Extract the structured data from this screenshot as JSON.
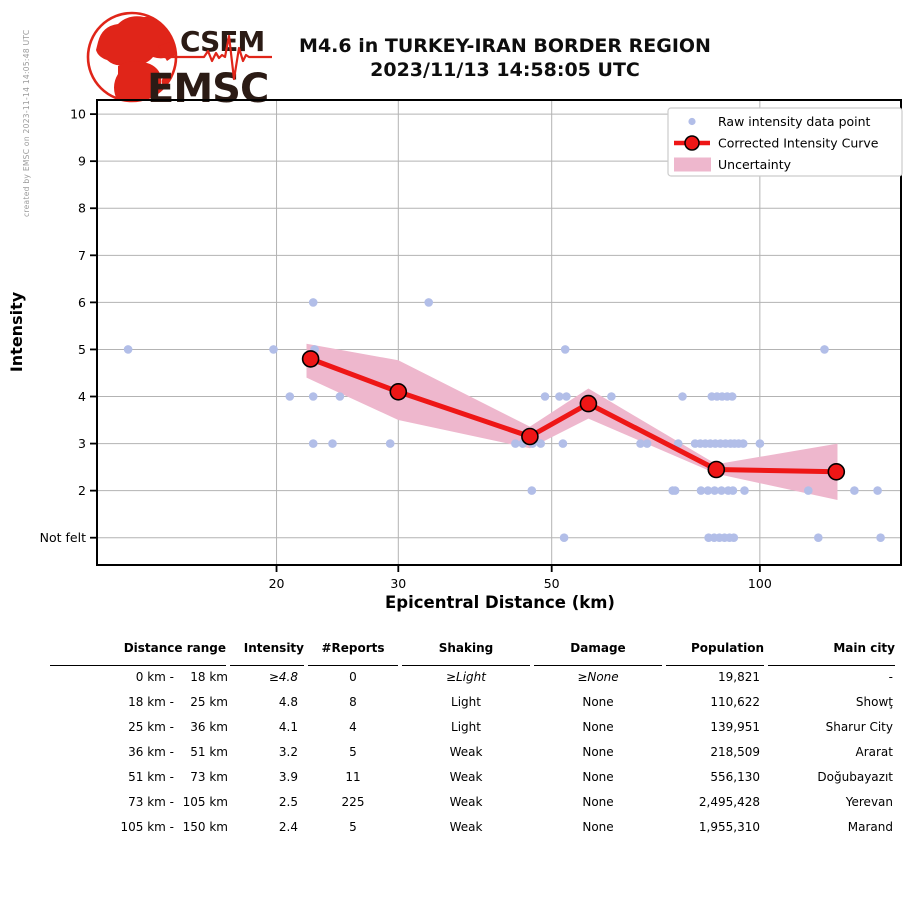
{
  "credit": "created by EMSC on 2023-11-14 14:05:48 UTC",
  "logo": {
    "top": "CSEM",
    "bottom": "EMSC",
    "text_color": "#2b1b15",
    "accent_color": "#e02519"
  },
  "title": {
    "line1": "M4.6 in TURKEY-IRAN BORDER REGION",
    "line2": "2023/11/13 14:58:05 UTC"
  },
  "chart_data": {
    "type": "line",
    "title": "M4.6 in TURKEY-IRAN BORDER REGION 2023/11/13 14:58:05 UTC",
    "xlabel": "Epicentral Distance (km)",
    "ylabel": "Intensity",
    "x_scale": "log",
    "xlim": [
      11,
      160
    ],
    "ylim_intensity": [
      0.42,
      10.3
    ],
    "grid": true,
    "legend_position": "upper right",
    "x_ticks": [
      {
        "value": 20,
        "label": "20"
      },
      {
        "value": 30,
        "label": "30"
      },
      {
        "value": 50,
        "label": "50"
      },
      {
        "value": 100,
        "label": "100"
      }
    ],
    "y_ticks": [
      {
        "value": 10,
        "label": "10"
      },
      {
        "value": 9,
        "label": "9"
      },
      {
        "value": 8,
        "label": "8"
      },
      {
        "value": 7,
        "label": "7"
      },
      {
        "value": 6,
        "label": "6"
      },
      {
        "value": 5,
        "label": "5"
      },
      {
        "value": 4,
        "label": "4"
      },
      {
        "value": 3,
        "label": "3"
      },
      {
        "value": 2,
        "label": "2"
      },
      {
        "value": 1,
        "label": "Not felt"
      }
    ],
    "legend": [
      {
        "type": "point",
        "label": "Raw intensity data point"
      },
      {
        "type": "line-marker",
        "label": "Corrected Intensity Curve"
      },
      {
        "type": "patch",
        "label": "Uncertainty"
      }
    ],
    "raw_points": [
      [
        22.6,
        6
      ],
      [
        33.2,
        6
      ],
      [
        12.2,
        5
      ],
      [
        19.8,
        5
      ],
      [
        22.7,
        5
      ],
      [
        52.3,
        5
      ],
      [
        124,
        5
      ],
      [
        20.9,
        4
      ],
      [
        22.6,
        4
      ],
      [
        24.7,
        4
      ],
      [
        48.9,
        4
      ],
      [
        51.3,
        4
      ],
      [
        52.5,
        4
      ],
      [
        61,
        4
      ],
      [
        77.3,
        4
      ],
      [
        85.2,
        4
      ],
      [
        86.7,
        4
      ],
      [
        88.2,
        4
      ],
      [
        89.7,
        4
      ],
      [
        91.2,
        4
      ],
      [
        22.6,
        3
      ],
      [
        24.1,
        3
      ],
      [
        29.2,
        3
      ],
      [
        44.3,
        3
      ],
      [
        45.4,
        3
      ],
      [
        46.9,
        3
      ],
      [
        48.2,
        3
      ],
      [
        51.9,
        3
      ],
      [
        67.2,
        3
      ],
      [
        68.7,
        3
      ],
      [
        76.2,
        3
      ],
      [
        80.6,
        3
      ],
      [
        82,
        3
      ],
      [
        83.4,
        3
      ],
      [
        84.8,
        3
      ],
      [
        86.2,
        3
      ],
      [
        87.7,
        3
      ],
      [
        89.2,
        3
      ],
      [
        90.7,
        3
      ],
      [
        91.9,
        3
      ],
      [
        93.2,
        3
      ],
      [
        94.6,
        3
      ],
      [
        100,
        3
      ],
      [
        46.8,
        2
      ],
      [
        74.8,
        2
      ],
      [
        75.4,
        2
      ],
      [
        82.2,
        2
      ],
      [
        84.1,
        2
      ],
      [
        86,
        2
      ],
      [
        88,
        2
      ],
      [
        90,
        2
      ],
      [
        91.4,
        2
      ],
      [
        95,
        2
      ],
      [
        117.5,
        2
      ],
      [
        137,
        2
      ],
      [
        148,
        2
      ],
      [
        52.1,
        1
      ],
      [
        84.3,
        1
      ],
      [
        85.9,
        1
      ],
      [
        87.4,
        1
      ],
      [
        88.9,
        1
      ],
      [
        90.4,
        1
      ],
      [
        91.7,
        1
      ],
      [
        121.5,
        1
      ],
      [
        149.5,
        1
      ]
    ],
    "corrected_curve": [
      [
        22.4,
        4.8
      ],
      [
        30,
        4.1
      ],
      [
        46.5,
        3.15
      ],
      [
        56.5,
        3.85
      ],
      [
        86.5,
        2.45
      ],
      [
        129,
        2.4
      ]
    ],
    "uncertainty_band": {
      "x": [
        22.1,
        30,
        46.5,
        56.5,
        86.5,
        129.5
      ],
      "upper": [
        5.12,
        4.77,
        3.36,
        4.17,
        2.56,
        3.0
      ],
      "lower": [
        4.4,
        3.5,
        2.9,
        3.53,
        2.36,
        1.8
      ]
    },
    "colors": {
      "raw": "#b2bee8",
      "curve": "#ee1616",
      "marker_edge": "#000000",
      "band": "#eeb7cd",
      "grid": "#b3b3b3",
      "spine": "#000000",
      "legend_border": "#cccccc"
    }
  },
  "table": {
    "headers": [
      "Distance range",
      "Intensity",
      "#Reports",
      "Shaking",
      "Damage",
      "Population",
      "Main city"
    ],
    "rows": [
      {
        "range_from": "0 km -",
        "range_to": "18 km",
        "intensity": "≥4.8",
        "reports": "0",
        "shaking": "≥Light",
        "damage": "≥None",
        "population": "19,821",
        "city": "-",
        "estimated": true
      },
      {
        "range_from": "18 km -",
        "range_to": "25 km",
        "intensity": "4.8",
        "reports": "8",
        "shaking": "Light",
        "damage": "None",
        "population": "110,622",
        "city": "Showţ",
        "estimated": false
      },
      {
        "range_from": "25 km -",
        "range_to": "36 km",
        "intensity": "4.1",
        "reports": "4",
        "shaking": "Light",
        "damage": "None",
        "population": "139,951",
        "city": "Sharur City",
        "estimated": false
      },
      {
        "range_from": "36 km -",
        "range_to": "51 km",
        "intensity": "3.2",
        "reports": "5",
        "shaking": "Weak",
        "damage": "None",
        "population": "218,509",
        "city": "Ararat",
        "estimated": false
      },
      {
        "range_from": "51 km -",
        "range_to": "73 km",
        "intensity": "3.9",
        "reports": "11",
        "shaking": "Weak",
        "damage": "None",
        "population": "556,130",
        "city": "Doğubayazıt",
        "estimated": false
      },
      {
        "range_from": "73 km -",
        "range_to": "105 km",
        "intensity": "2.5",
        "reports": "225",
        "shaking": "Weak",
        "damage": "None",
        "population": "2,495,428",
        "city": "Yerevan",
        "estimated": false
      },
      {
        "range_from": "105 km -",
        "range_to": "150 km",
        "intensity": "2.4",
        "reports": "5",
        "shaking": "Weak",
        "damage": "None",
        "population": "1,955,310",
        "city": "Marand",
        "estimated": false
      }
    ]
  }
}
